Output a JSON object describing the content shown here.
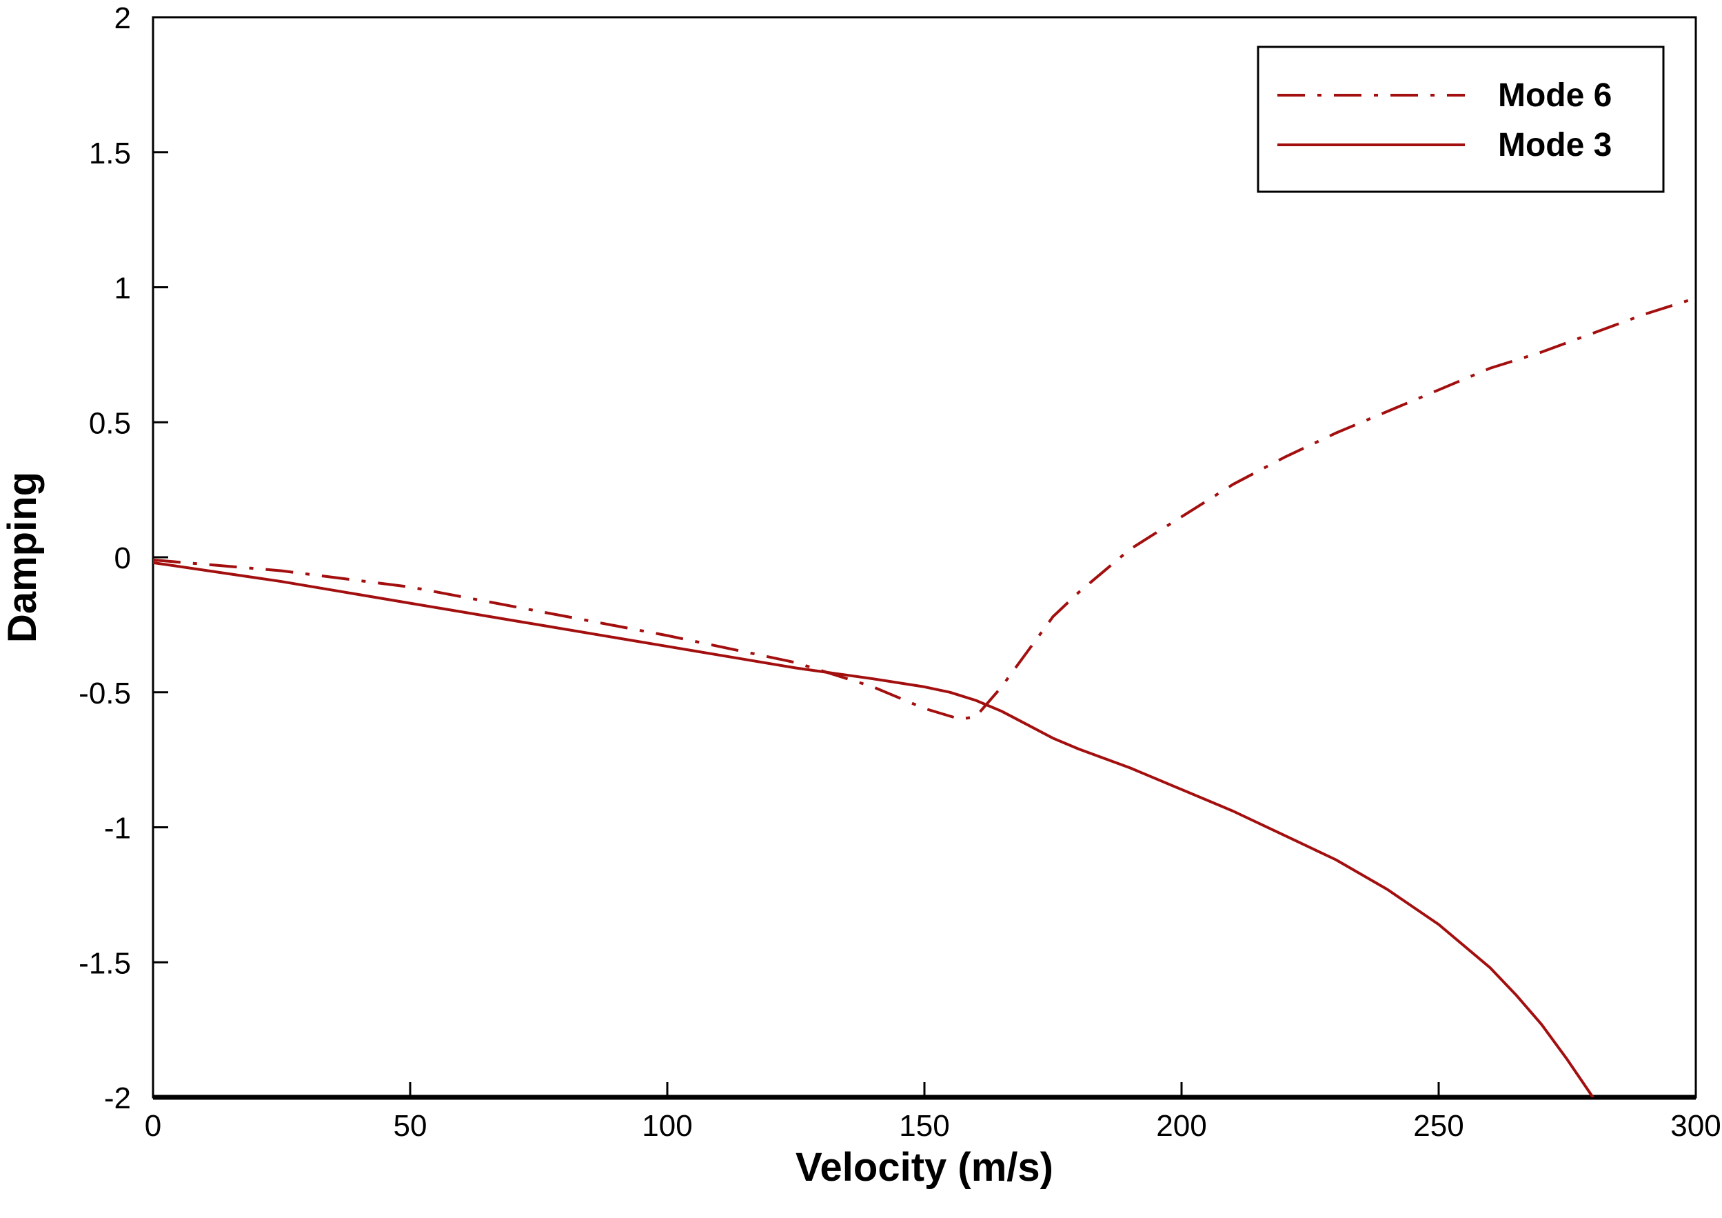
{
  "chart_data": {
    "type": "line",
    "title": "",
    "xlabel": "Velocity (m/s)",
    "ylabel": "Damping",
    "xlim": [
      0,
      300
    ],
    "ylim": [
      -2,
      2
    ],
    "xticks": [
      "0",
      "50",
      "100",
      "150",
      "200",
      "250",
      "300"
    ],
    "yticks": [
      "2",
      "1.5",
      "1",
      "0.5",
      "0",
      "-0.5",
      "-1",
      "-1.5",
      "-2"
    ],
    "grid": false,
    "legend": "top-right",
    "series": [
      {
        "name": "Mode 6",
        "style": "dash-dot",
        "color": "#a30f0f",
        "x": [
          0,
          25,
          50,
          75,
          100,
          125,
          140,
          150,
          157,
          160,
          165,
          170,
          175,
          180,
          190,
          200,
          210,
          220,
          230,
          240,
          250,
          260,
          270,
          280,
          290,
          300
        ],
        "y": [
          -0.01,
          -0.05,
          -0.11,
          -0.2,
          -0.29,
          -0.39,
          -0.48,
          -0.56,
          -0.6,
          -0.59,
          -0.48,
          -0.35,
          -0.22,
          -0.13,
          0.03,
          0.15,
          0.27,
          0.37,
          0.46,
          0.54,
          0.62,
          0.7,
          0.76,
          0.83,
          0.9,
          0.96
        ]
      },
      {
        "name": "Mode 3",
        "style": "solid",
        "color": "#a30f0f",
        "x": [
          0,
          25,
          50,
          75,
          100,
          125,
          140,
          150,
          155,
          160,
          165,
          170,
          175,
          180,
          190,
          200,
          210,
          220,
          230,
          240,
          250,
          260,
          265,
          270,
          275,
          280,
          283,
          286
        ],
        "y": [
          -0.02,
          -0.09,
          -0.17,
          -0.25,
          -0.33,
          -0.41,
          -0.45,
          -0.48,
          -0.5,
          -0.53,
          -0.57,
          -0.62,
          -0.67,
          -0.71,
          -0.78,
          -0.86,
          -0.94,
          -1.03,
          -1.12,
          -1.23,
          -1.36,
          -1.52,
          -1.62,
          -1.73,
          -1.86,
          -2.0,
          -2.1,
          -2.2
        ]
      }
    ]
  }
}
